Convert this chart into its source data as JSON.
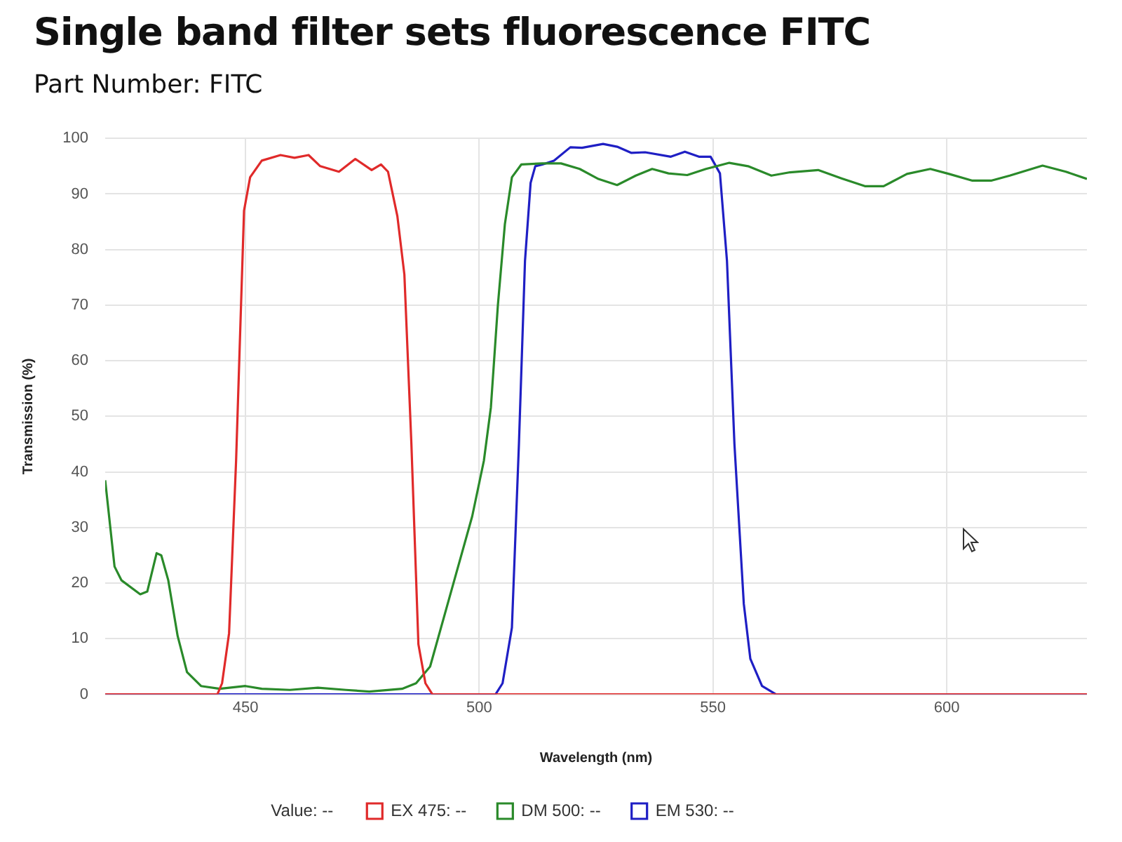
{
  "chart_data": {
    "type": "line",
    "title": "Single band filter sets fluorescence FITC",
    "subtitle": "Part Number: FITC",
    "xlabel": "Wavelength (nm)",
    "ylabel": "Transmission (%)",
    "xlim": [
      420,
      630
    ],
    "xticks": [
      450,
      500,
      550,
      600
    ],
    "ylim": [
      0,
      100
    ],
    "yticks": [
      0,
      10,
      20,
      30,
      40,
      50,
      60,
      70,
      80,
      90,
      100
    ],
    "grid": true,
    "legend": "bottom",
    "marker": "none",
    "line_style": "solid",
    "annotations": [
      "Value: --"
    ],
    "series": [
      {
        "name": "EX 475: --",
        "color": "#e02a2a",
        "x": [
          420,
          444,
          445,
          446.5,
          448,
          449.7,
          451,
          453.5,
          457.5,
          460.5,
          463.5,
          466,
          470,
          473.5,
          477,
          479,
          480.5,
          482.5,
          484,
          485.5,
          487,
          488.5,
          490,
          630
        ],
        "values": [
          0,
          0,
          2,
          11,
          42,
          87,
          93,
          96,
          97,
          96.5,
          97,
          95,
          94,
          96.3,
          94.3,
          95.3,
          94,
          86,
          75.5,
          45,
          9,
          2,
          0,
          0
        ]
      },
      {
        "name": "DM 500: --",
        "color": "#2a8a2a",
        "x": [
          420,
          422,
          423.5,
          427.5,
          429,
          431,
          432,
          433.5,
          435.5,
          437.5,
          440.5,
          444.5,
          450,
          453.5,
          459.5,
          465.5,
          471.5,
          476.5,
          483.5,
          486.5,
          489.5,
          493.5,
          498.5,
          501,
          502.5,
          504,
          505.5,
          507,
          509,
          513.5,
          517.5,
          521.5,
          525.5,
          529.5,
          533.5,
          537,
          540.5,
          544.5,
          548.5,
          553.5,
          557.5,
          562.5,
          566.5,
          572.5,
          577.5,
          582.5,
          586.5,
          591.5,
          596.5,
          600.5,
          605.5,
          609.5,
          613.5,
          620.5,
          625.5,
          630
        ],
        "values": [
          38.5,
          23,
          20.5,
          18,
          18.5,
          25.4,
          25,
          20.5,
          10.5,
          4,
          1.5,
          1,
          1.5,
          1,
          0.8,
          1.2,
          0.8,
          0.5,
          1,
          2,
          5,
          17,
          32,
          42,
          51.6,
          70,
          84.6,
          93,
          95.3,
          95.5,
          95.5,
          94.5,
          92.7,
          91.6,
          93.3,
          94.5,
          93.7,
          93.4,
          94.5,
          95.6,
          95,
          93.3,
          93.9,
          94.3,
          92.8,
          91.4,
          91.4,
          93.6,
          94.5,
          93.6,
          92.4,
          92.4,
          93.3,
          95.1,
          94,
          92.7
        ]
      },
      {
        "name": "EM 530: --",
        "color": "#1f1fc4",
        "x": [
          420,
          503.5,
          505,
          507,
          508.5,
          509.8,
          511,
          512,
          513.5,
          516,
          519.5,
          522,
          526.5,
          529.5,
          532.5,
          535.5,
          541,
          544,
          547,
          549.5,
          551.5,
          553,
          554.6,
          556.6,
          558,
          560.5,
          563.5,
          630
        ],
        "values": [
          0,
          0,
          2,
          12,
          45,
          78,
          92,
          95,
          95.3,
          96,
          98.4,
          98.3,
          99,
          98.5,
          97.4,
          97.5,
          96.7,
          97.6,
          96.7,
          96.7,
          93.7,
          78,
          45,
          16.3,
          6.4,
          1.5,
          0,
          0
        ]
      }
    ]
  }
}
